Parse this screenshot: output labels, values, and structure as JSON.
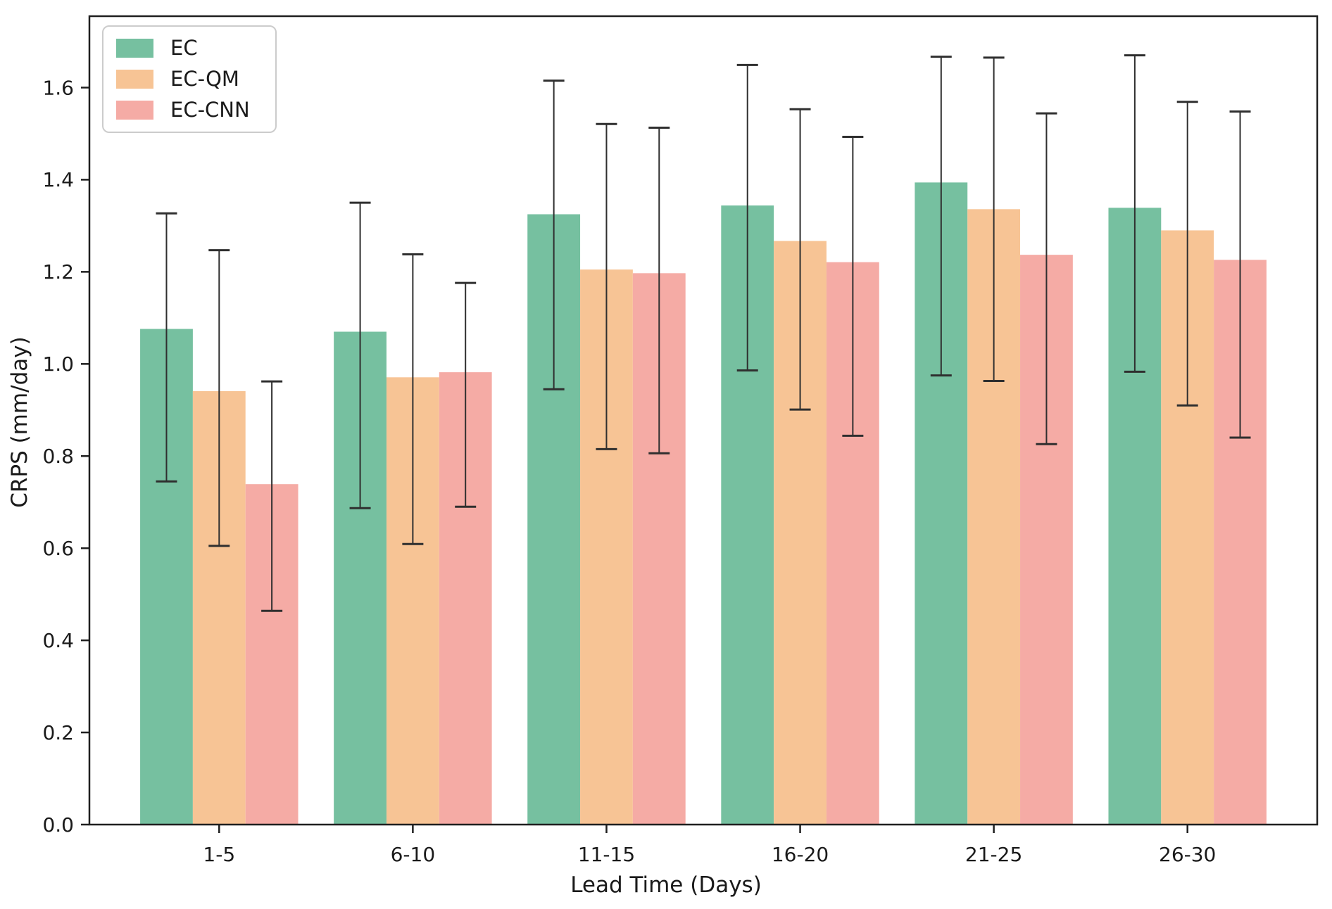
{
  "figure": {
    "background": "#ffffff",
    "frame_color": "#1f1f1f",
    "errorbar_color": "#2f2f2f",
    "tick_label_color": "#1a1a1a"
  },
  "chart_data": {
    "type": "bar",
    "title": "",
    "xlabel": "Lead Time (Days)",
    "ylabel": "CRPS (mm/day)",
    "categories": [
      "1-5",
      "6-10",
      "11-15",
      "16-20",
      "21-25",
      "26-30"
    ],
    "series": [
      {
        "name": "EC",
        "color": "#76c0a0",
        "values": [
          1.076,
          1.07,
          1.325,
          1.344,
          1.394,
          1.339
        ],
        "err_low": [
          0.745,
          0.687,
          0.945,
          0.986,
          0.975,
          0.983
        ],
        "err_high": [
          1.327,
          1.35,
          1.615,
          1.649,
          1.667,
          1.67
        ]
      },
      {
        "name": "EC-QM",
        "color": "#f7c495",
        "values": [
          0.941,
          0.971,
          1.205,
          1.267,
          1.336,
          1.29
        ],
        "err_low": [
          0.605,
          0.609,
          0.815,
          0.901,
          0.963,
          0.91
        ],
        "err_high": [
          1.247,
          1.238,
          1.521,
          1.553,
          1.665,
          1.569
        ]
      },
      {
        "name": "EC-CNN",
        "color": "#f5aba5",
        "values": [
          0.739,
          0.982,
          1.197,
          1.221,
          1.237,
          1.226
        ],
        "err_low": [
          0.464,
          0.69,
          0.806,
          0.844,
          0.826,
          0.84
        ],
        "err_high": [
          0.962,
          1.176,
          1.513,
          1.493,
          1.544,
          1.548
        ]
      }
    ],
    "ylim": [
      0.0,
      1.755
    ],
    "yticks": [
      "0.0",
      "0.2",
      "0.4",
      "0.6",
      "0.8",
      "1.0",
      "1.2",
      "1.4",
      "1.6"
    ],
    "legend_position": "upper left",
    "grid": false,
    "error_bars": true
  }
}
